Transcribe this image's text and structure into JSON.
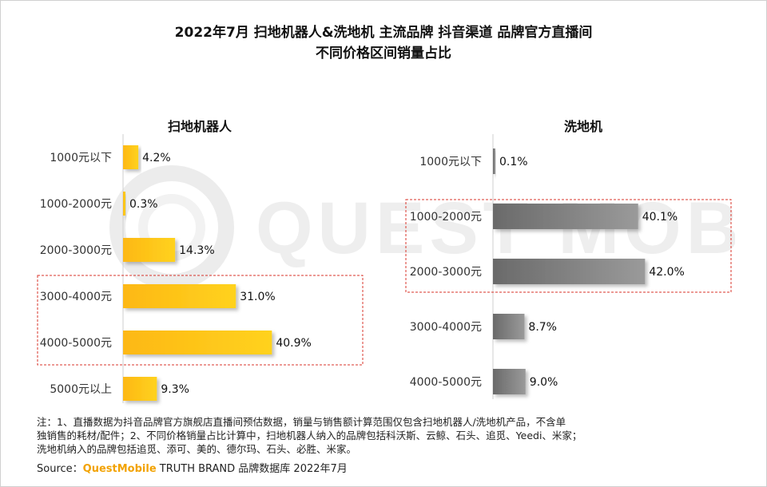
{
  "title": {
    "line1": "2022年7月 扫地机器人&洗地机 主流品牌 抖音渠道 品牌官方直播间",
    "line2": "不同价格区间销量占比"
  },
  "watermark": "QUEST MOBILE",
  "chart_data": [
    {
      "type": "bar",
      "orientation": "horizontal",
      "title": "扫地机器人",
      "categories": [
        "1000元以下",
        "1000-2000元",
        "2000-3000元",
        "3000-4000元",
        "4000-5000元",
        "5000元以上"
      ],
      "values": [
        4.2,
        0.3,
        14.3,
        31.0,
        40.9,
        9.3
      ],
      "value_labels": [
        "4.2%",
        "0.3%",
        "14.3%",
        "31.0%",
        "40.9%",
        "9.3%"
      ],
      "highlighted": [
        "3000-4000元",
        "4000-5000元"
      ],
      "color": "#f7b500",
      "xlim": [
        0,
        45
      ],
      "grid": false
    },
    {
      "type": "bar",
      "orientation": "horizontal",
      "title": "洗地机",
      "categories": [
        "1000元以下",
        "1000-2000元",
        "2000-3000元",
        "3000-4000元",
        "4000-5000元"
      ],
      "values": [
        0.1,
        40.1,
        42.0,
        8.7,
        9.0
      ],
      "value_labels": [
        "0.1%",
        "40.1%",
        "42.0%",
        "8.7%",
        "9.0%"
      ],
      "highlighted": [
        "1000-2000元",
        "2000-3000元"
      ],
      "color": "#7a7a7a",
      "xlim": [
        0,
        47
      ],
      "grid": false
    }
  ],
  "notes": {
    "line1": "注：1、直播数据为抖音品牌官方旗舰店直播间预估数据，销量与销售额计算范围仅包含扫地机器人/洗地机产品，不含单",
    "line2": "独销售的耗材/配件；2、不同价格销量占比计算中，扫地机器人纳入的品牌包括科沃斯、云鲸、石头、追觅、Yeedi、米家；",
    "line3": "洗地机纳入的品牌包括追觅、添可、美的、德尔玛、石头、必胜、米家。"
  },
  "source": {
    "label": "Source：",
    "brand": "QuestMobile",
    "rest": " TRUTH BRAND 品牌数据库 2022年7月"
  }
}
